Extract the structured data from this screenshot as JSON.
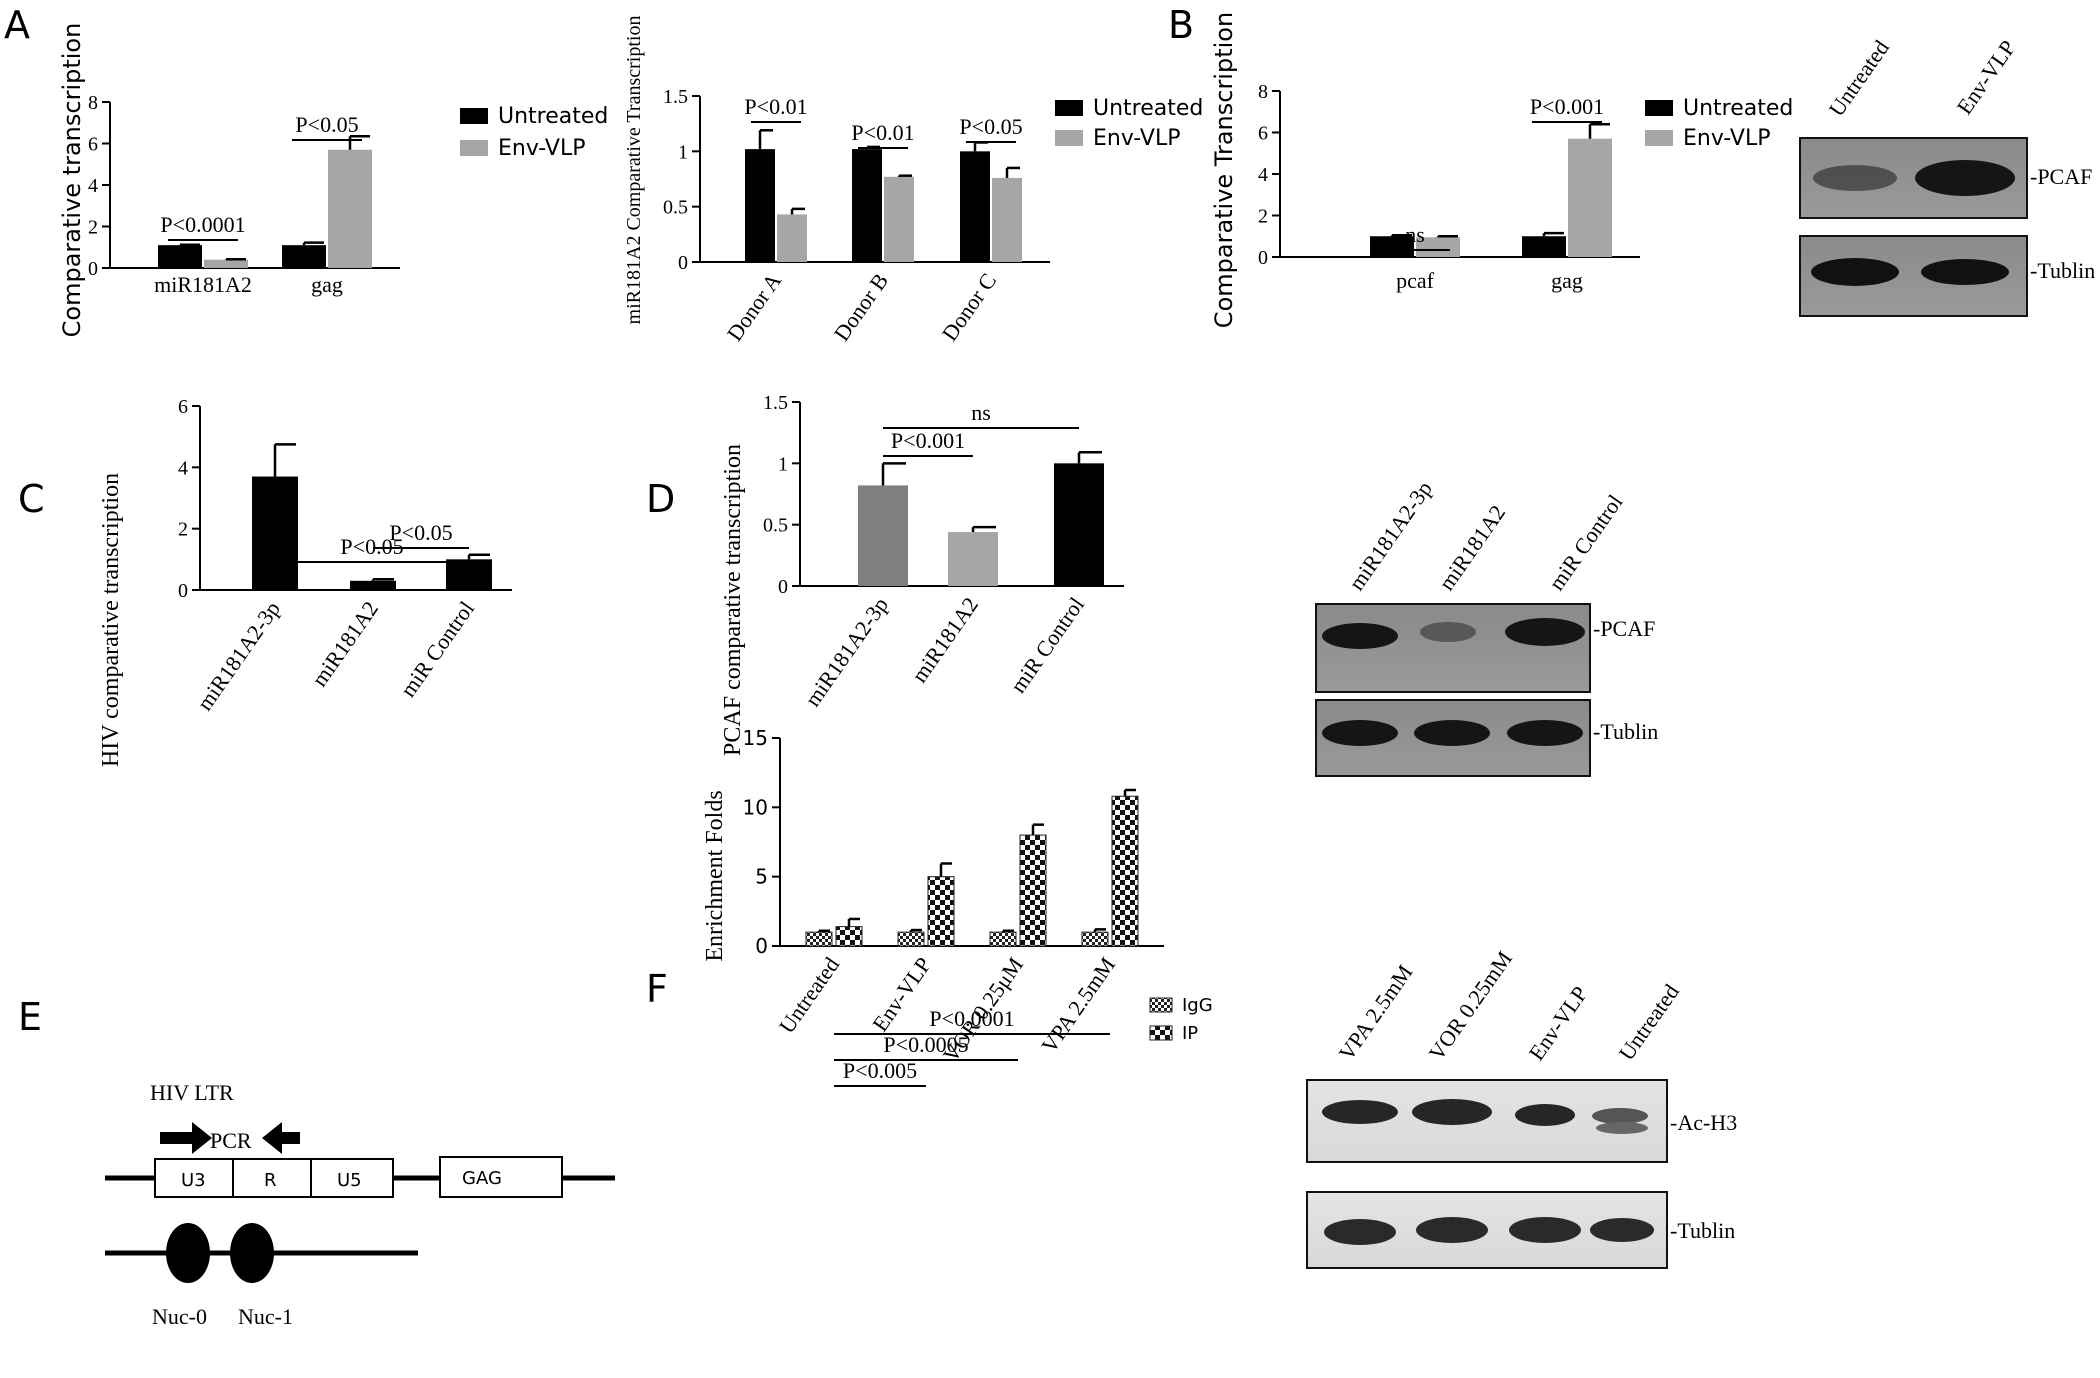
{
  "panels": {
    "A": {
      "letter": "A"
    },
    "B": {
      "letter": "B"
    },
    "C": {
      "letter": "C"
    },
    "D": {
      "letter": "D"
    },
    "E": {
      "letter": "E"
    },
    "F": {
      "letter": "F"
    }
  },
  "chart_data": [
    {
      "id": "A1",
      "type": "bar",
      "ylabel": "Comparative transcription",
      "ylim": [
        0,
        8
      ],
      "yticks": [
        0,
        2,
        4,
        6,
        8
      ],
      "categories": [
        "miR181A2",
        "gag"
      ],
      "series": [
        {
          "name": "Untreated",
          "color": "#000000",
          "values": [
            1.1,
            1.1
          ],
          "errors": [
            0.02,
            0.12
          ]
        },
        {
          "name": "Env-VLP",
          "color": "#a6a6a6",
          "values": [
            0.4,
            5.7
          ],
          "errors": [
            0.02,
            0.65
          ]
        }
      ],
      "annotations": [
        {
          "text": "P<0.0001",
          "from": 0,
          "to": 0
        },
        {
          "text": "P<0.05",
          "from": 1,
          "to": 1
        }
      ],
      "legend": "top-right"
    },
    {
      "id": "A2",
      "type": "bar",
      "ylabel": "miR181A2 Comparative Transcription",
      "ylim": [
        0,
        1.5
      ],
      "yticks": [
        "0",
        "0.5",
        "1",
        "1.5"
      ],
      "categories": [
        "Donor A",
        "Donor B",
        "Donor C"
      ],
      "series": [
        {
          "name": "Untreated",
          "color": "#000000",
          "values": [
            1.02,
            1.02,
            1.0
          ],
          "errors": [
            0.17,
            0.02,
            0.08
          ]
        },
        {
          "name": "Env-VLP",
          "color": "#a6a6a6",
          "values": [
            0.43,
            0.77,
            0.76
          ],
          "errors": [
            0.05,
            0.01,
            0.09
          ]
        }
      ],
      "annotations": [
        {
          "text": "P<0.01",
          "from": 0,
          "to": 0
        },
        {
          "text": "P<0.01",
          "from": 1,
          "to": 1
        },
        {
          "text": "P<0.05",
          "from": 2,
          "to": 2
        }
      ],
      "legend": "top-right"
    },
    {
      "id": "B1",
      "type": "bar",
      "ylabel": "Comparative Transcription",
      "ylim": [
        0,
        8
      ],
      "yticks": [
        0,
        2,
        4,
        6,
        8
      ],
      "categories": [
        "pcaf",
        "gag"
      ],
      "series": [
        {
          "name": "Untreated",
          "color": "#000000",
          "values": [
            1.0,
            1.0
          ],
          "errors": [
            0.05,
            0.15
          ]
        },
        {
          "name": "Env-VLP",
          "color": "#a6a6a6",
          "values": [
            0.95,
            5.7
          ],
          "errors": [
            0.05,
            0.7
          ]
        }
      ],
      "annotations": [
        {
          "text": "ns",
          "from": 0,
          "to": 0
        },
        {
          "text": "P<0.001",
          "from": 1,
          "to": 1
        }
      ],
      "legend": "top-right"
    },
    {
      "id": "C1",
      "type": "bar",
      "ylabel": "HIV comparative transcription",
      "ylim": [
        0,
        6
      ],
      "yticks": [
        0,
        2,
        4,
        6
      ],
      "categories": [
        "miR181A2-3p",
        "miR181A2",
        "miR Control"
      ],
      "series": [
        {
          "name": "",
          "color": "#000000",
          "values": [
            3.7,
            0.3,
            1.0
          ],
          "errors": [
            1.05,
            0.05,
            0.15
          ]
        }
      ],
      "annotations": [
        {
          "text": "P<0.05",
          "from": 0,
          "to": 2
        },
        {
          "text": "P<0.05",
          "from": 1,
          "to": 2
        }
      ]
    },
    {
      "id": "D1",
      "type": "bar",
      "ylabel": "PCAF comparative transcription",
      "ylim": [
        0,
        1.5
      ],
      "yticks": [
        "0",
        "0.5",
        "1",
        "1.5"
      ],
      "categories": [
        "miR181A2-3p",
        "miR181A2",
        "miR Control"
      ],
      "series": [
        {
          "name": "",
          "colors": [
            "#7f7f7f",
            "#a6a6a6",
            "#000000"
          ],
          "values": [
            0.82,
            0.44,
            1.0
          ],
          "errors": [
            0.18,
            0.04,
            0.09
          ]
        }
      ],
      "annotations": [
        {
          "text": "ns",
          "from": 0,
          "to": 2
        },
        {
          "text": "P<0.001",
          "from": 0,
          "to": 1
        }
      ]
    },
    {
      "id": "F1",
      "type": "bar",
      "ylabel": "Enrichment Folds",
      "ylim": [
        0,
        15
      ],
      "yticks": [
        0,
        5,
        10,
        15
      ],
      "categories": [
        "Untreated",
        "Env-VLP",
        "VOR 0.25μM",
        "VPA 2.5mM"
      ],
      "series": [
        {
          "name": "IgG",
          "pattern": "small-check",
          "values": [
            1.0,
            1.0,
            1.0,
            1.0
          ],
          "errors": [
            0.1,
            0.15,
            0.1,
            0.2
          ]
        },
        {
          "name": "IP",
          "pattern": "large-check",
          "values": [
            1.4,
            5.0,
            8.0,
            10.8
          ],
          "errors": [
            0.55,
            0.95,
            0.75,
            0.45
          ]
        }
      ],
      "annotations": [
        {
          "text": "P<0.0001",
          "from": 0,
          "to": 3
        },
        {
          "text": "P<0.0005",
          "from": 0,
          "to": 2
        },
        {
          "text": "P<0.005",
          "from": 0,
          "to": 1
        }
      ],
      "legend": "top-right"
    }
  ],
  "blots": {
    "B": {
      "lanes": [
        "Untreated",
        "Env-VLP"
      ],
      "bands": [
        "-PCAF",
        "-Tublin"
      ]
    },
    "D": {
      "lanes": [
        "miR181A2-3p",
        "miR181A2",
        "miR Control"
      ],
      "bands": [
        "-PCAF",
        "-Tublin"
      ]
    },
    "F": {
      "lanes": [
        "VPA 2.5mM",
        "VOR 0.25mM",
        "Env-VLP",
        "Untreated"
      ],
      "bands": [
        "-Ac-H3",
        "-Tublin"
      ]
    }
  },
  "diagram_E": {
    "title": "HIV LTR",
    "primer": "PCR",
    "segments": [
      "U3",
      "R",
      "U5"
    ],
    "gene": "GAG",
    "nucleosomes": [
      "Nuc-0",
      "Nuc-1"
    ]
  }
}
